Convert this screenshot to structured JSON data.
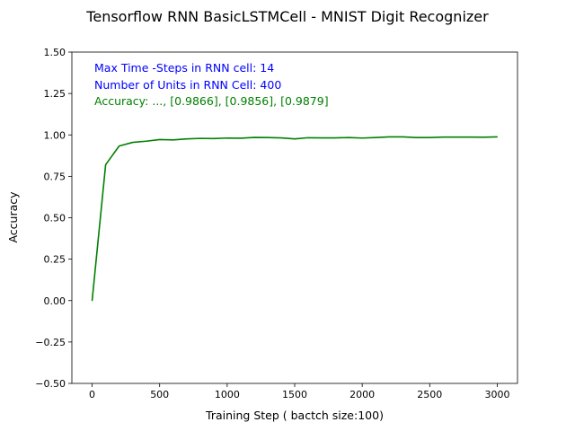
{
  "chart_data": {
    "type": "line",
    "title": "Tensorflow RNN BasicLSTMCell - MNIST Digit Recognizer",
    "xlabel": "Training Step ( bactch size:100)",
    "ylabel": "Accuracy",
    "xlim": [
      -150,
      3150
    ],
    "ylim": [
      -0.5,
      1.5
    ],
    "x_ticks": [
      0,
      500,
      1000,
      1500,
      2000,
      2500,
      3000
    ],
    "x_tick_labels": [
      "0",
      "500",
      "1000",
      "1500",
      "2000",
      "2500",
      "3000"
    ],
    "y_ticks": [
      -0.5,
      -0.25,
      0.0,
      0.25,
      0.5,
      0.75,
      1.0,
      1.25,
      1.5
    ],
    "y_tick_labels": [
      "−0.50",
      "−0.25",
      "0.00",
      "0.25",
      "0.50",
      "0.75",
      "1.00",
      "1.25",
      "1.50"
    ],
    "grid": false,
    "series": [
      {
        "color": "#008000",
        "x": [
          0,
          100,
          200,
          300,
          400,
          500,
          600,
          700,
          800,
          900,
          1000,
          1100,
          1200,
          1300,
          1400,
          1500,
          1600,
          1700,
          1800,
          1900,
          2000,
          2100,
          2200,
          2300,
          2400,
          2500,
          2600,
          2700,
          2800,
          2900,
          3000
        ],
        "y": [
          0.0,
          0.82,
          0.933,
          0.955,
          0.962,
          0.972,
          0.97,
          0.976,
          0.979,
          0.978,
          0.981,
          0.98,
          0.985,
          0.984,
          0.982,
          0.976,
          0.983,
          0.982,
          0.982,
          0.984,
          0.981,
          0.984,
          0.988,
          0.988,
          0.984,
          0.984,
          0.987,
          0.987,
          0.987,
          0.986,
          0.988
        ]
      }
    ],
    "annotations": [
      {
        "text": "Max Time -Steps in RNN cell: 14",
        "color": "#0000ff"
      },
      {
        "text": "Number of Units in RNN Cell: 400",
        "color": "#0000ff"
      },
      {
        "text": "Accuracy:  ..., [0.9866], [0.9856], [0.9879]",
        "color": "#008000"
      }
    ]
  }
}
